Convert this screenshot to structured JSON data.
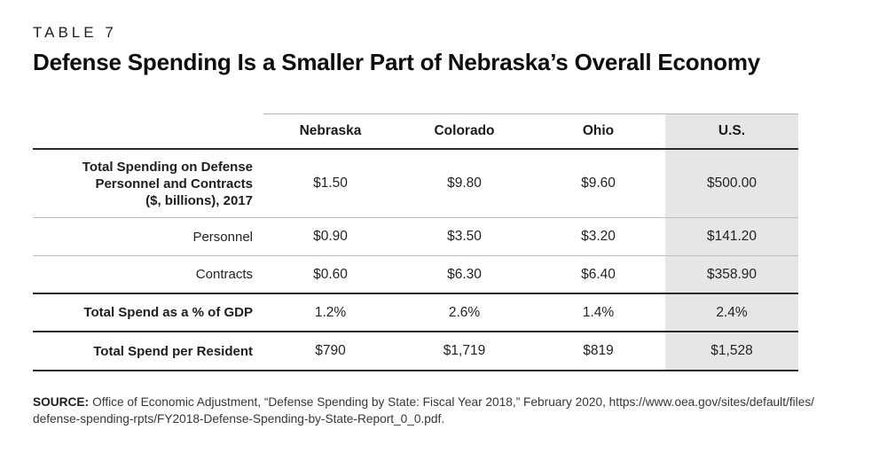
{
  "chart_data": {
    "type": "table",
    "eyebrow": "TABLE 7",
    "title": "Defense Spending Is a Smaller Part of Nebraska’s Overall Economy",
    "columns": [
      "Nebraska",
      "Colorado",
      "Ohio",
      "U.S."
    ],
    "highlight_column": "U.S.",
    "highlight_color": "#e5e6e6",
    "rows": [
      {
        "label": "Total Spending on Defense Personnel and Contracts ($, billions), 2017",
        "label_lines": [
          "Total Spending on Defense",
          "Personnel and Contracts",
          "($, billions), 2017"
        ],
        "values": [
          "$1.50",
          "$9.80",
          "$9.60",
          "$500.00"
        ]
      },
      {
        "label": "Personnel",
        "values": [
          "$0.90",
          "$3.50",
          "$3.20",
          "$141.20"
        ]
      },
      {
        "label": "Contracts",
        "values": [
          "$0.60",
          "$6.30",
          "$6.40",
          "$358.90"
        ]
      },
      {
        "label": "Total Spend as a % of GDP",
        "values": [
          "1.2%",
          "2.6%",
          "1.4%",
          "2.4%"
        ]
      },
      {
        "label": "Total Spend per Resident",
        "values": [
          "$790",
          "$1,719",
          "$819",
          "$1,528"
        ]
      }
    ]
  },
  "source": {
    "label": "SOURCE:",
    "line1": "Office of Economic Adjustment, “Defense Spending by State: Fiscal Year 2018,” February 2020, https://www.oea.gov/sites/default/files/",
    "line2": "defense-spending-rpts/FY2018-Defense-Spending-by-State-Report_0_0.pdf."
  }
}
